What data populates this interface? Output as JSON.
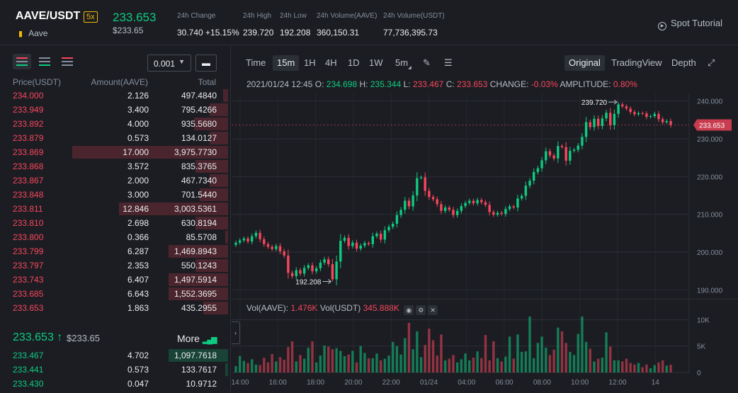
{
  "header": {
    "pair": "AAVE/USDT",
    "leverage": "5x",
    "coin_name": "Aave",
    "last_price": "233.653",
    "last_price_usd": "$233.65",
    "stats": [
      {
        "label": "24h Change",
        "value": "30.740 +15.15%",
        "color": "#0ecb81"
      },
      {
        "label": "24h High",
        "value": "239.720"
      },
      {
        "label": "24h Low",
        "value": "192.208"
      },
      {
        "label": "24h Volume(AAVE)",
        "value": "360,150.31"
      },
      {
        "label": "24h Volume(USDT)",
        "value": "77,736,395.73"
      }
    ],
    "tutorial": "Spot Tutorial"
  },
  "orderbook": {
    "precision": "0.001",
    "headers": {
      "price": "Price(USDT)",
      "amount": "Amount(AAVE)",
      "total": "Total"
    },
    "asks": [
      {
        "price": "234.000",
        "amount": "2.126",
        "total": "497.4840",
        "depth": 0.03
      },
      {
        "price": "233.949",
        "amount": "3.400",
        "total": "795.4266",
        "depth": 0.12
      },
      {
        "price": "233.892",
        "amount": "4.000",
        "total": "935.5680",
        "depth": 0.22
      },
      {
        "price": "233.879",
        "amount": "0.573",
        "total": "134.0127",
        "depth": 0.12
      },
      {
        "price": "233.869",
        "amount": "17.000",
        "total": "3,975.7730",
        "depth": 1.0
      },
      {
        "price": "233.868",
        "amount": "3.572",
        "total": "835.3765",
        "depth": 0.21
      },
      {
        "price": "233.867",
        "amount": "2.000",
        "total": "467.7340",
        "depth": 0.12
      },
      {
        "price": "233.848",
        "amount": "3.000",
        "total": "701.5440",
        "depth": 0.18
      },
      {
        "price": "233.811",
        "amount": "12.846",
        "total": "3,003.5361",
        "depth": 0.7
      },
      {
        "price": "233.810",
        "amount": "2.698",
        "total": "630.8194",
        "depth": 0.21
      },
      {
        "price": "233.800",
        "amount": "0.366",
        "total": "85.5708",
        "depth": 0.02
      },
      {
        "price": "233.799",
        "amount": "6.287",
        "total": "1,469.8943",
        "depth": 0.38
      },
      {
        "price": "233.797",
        "amount": "2.353",
        "total": "550.1243",
        "depth": 0.21
      },
      {
        "price": "233.743",
        "amount": "6.407",
        "total": "1,497.5914",
        "depth": 0.38
      },
      {
        "price": "233.685",
        "amount": "6.643",
        "total": "1,552.3695",
        "depth": 0.38
      },
      {
        "price": "233.653",
        "amount": "1.863",
        "total": "435.2955",
        "depth": 0.16
      }
    ],
    "mid_price": "233.653",
    "mid_arrow": "↑",
    "mid_usd": "$233.65",
    "more_label": "More",
    "bids": [
      {
        "price": "233.467",
        "amount": "4.702",
        "total": "1,097.7618",
        "depth": 0.38
      },
      {
        "price": "233.441",
        "amount": "0.573",
        "total": "133.7617",
        "depth": 0.02
      },
      {
        "price": "233.430",
        "amount": "0.047",
        "total": "10.9712",
        "depth": 0.0
      }
    ]
  },
  "chart_toolbar": {
    "intervals": [
      "Time",
      "15m",
      "1H",
      "4H",
      "1D",
      "1W",
      "5m"
    ],
    "active_interval": "15m",
    "views": [
      "Original",
      "TradingView",
      "Depth"
    ],
    "active_view": "Original"
  },
  "ohlc_info": {
    "date": "2021/01/24 12:45",
    "open_label": "O:",
    "open": "234.698",
    "high_label": "H:",
    "high": "235.344",
    "low_label": "L:",
    "low": "233.467",
    "close_label": "C:",
    "close": "233.653",
    "change_label": "CHANGE:",
    "change": "-0.03%",
    "amplitude_label": "AMPLITUDE:",
    "amplitude": "0.80%"
  },
  "volume_info": {
    "vol_base_label": "Vol(AAVE):",
    "vol_base": "1.476K",
    "vol_quote_label": "Vol(USDT)",
    "vol_quote": "345.888K"
  },
  "colors": {
    "up": "#0ecb81",
    "down": "#f6465d",
    "background": "#1b1d22",
    "grid": "#2b2f36"
  },
  "chart_data": {
    "type": "candlestick",
    "price_axis": {
      "ticks": [
        "240.000",
        "230.000",
        "220.000",
        "210.000",
        "200.000",
        "190.000"
      ],
      "ylim": [
        188,
        242
      ]
    },
    "volume_axis": {
      "ticks": [
        "10K",
        "5K",
        "0"
      ],
      "ylim": [
        0,
        11000
      ]
    },
    "x_ticks": [
      "14:00",
      "16:00",
      "18:00",
      "20:00",
      "22:00",
      "01/24",
      "04:00",
      "06:00",
      "08:00",
      "10:00",
      "12:00",
      "14"
    ],
    "current_price_label": "233.653",
    "high_marker": {
      "label": "239.720"
    },
    "low_marker": {
      "label": "192.208"
    },
    "close": [
      202.5,
      203.1,
      203.6,
      202.8,
      204.2,
      205.1,
      203.4,
      202.1,
      201.4,
      200.8,
      201.6,
      200.2,
      199.1,
      194.5,
      193.6,
      195.2,
      194.3,
      195.8,
      196.5,
      194.9,
      195.7,
      197.2,
      198.1,
      196.8,
      192.8,
      197.5,
      203.0,
      203.8,
      201.6,
      202.5,
      200.9,
      201.7,
      202.4,
      202.1,
      204.2,
      204.9,
      203.3,
      205.8,
      206.7,
      207.5,
      209.8,
      211.2,
      213.6,
      212.1,
      215.0,
      219.6,
      219.8,
      216.2,
      214.6,
      214.0,
      212.7,
      210.9,
      211.8,
      211.2,
      209.8,
      210.9,
      212.2,
      213.0,
      213.6,
      212.9,
      213.8,
      213.2,
      212.5,
      210.6,
      209.9,
      210.4,
      210.1,
      211.4,
      212.1,
      211.8,
      214.2,
      214.9,
      217.6,
      218.9,
      221.2,
      222.2,
      224.3,
      226.7,
      225.6,
      224.8,
      228.1,
      227.8,
      224.2,
      226.8,
      227.1,
      228.2,
      230.5,
      234.4,
      233.1,
      235.3,
      233.4,
      235.4,
      236.9,
      233.6,
      236.6,
      239.1,
      238.6,
      238.0,
      237.1,
      236.5,
      236.8,
      236.7,
      235.8,
      236.0,
      236.6,
      235.2,
      234.4,
      234.7,
      233.65
    ],
    "volume": [
      1200,
      3100,
      2200,
      1800,
      2500,
      1500,
      1400,
      2800,
      1900,
      3500,
      2100,
      2900,
      2400,
      4800,
      5900,
      2100,
      3300,
      2600,
      4700,
      5900,
      1900,
      3200,
      5100,
      4900,
      4400,
      4600,
      4100,
      3100,
      3400,
      4100,
      1900,
      5000,
      3700,
      2700,
      2700,
      3600,
      2300,
      2600,
      3200,
      5800,
      5000,
      3400,
      6500,
      9400,
      4400,
      7800,
      2900,
      5200,
      8300,
      6100,
      3200,
      7200,
      2300,
      2600,
      3300,
      1900,
      2500,
      3600,
      2300,
      2800,
      4000,
      2700,
      7100,
      2300,
      5900,
      2700,
      2100,
      3000,
      6800,
      2600,
      7200,
      3900,
      4000,
      10600,
      2700,
      5600,
      6800,
      4700,
      3300,
      4300,
      8500,
      7800,
      5600,
      3900,
      3300,
      7300,
      10600,
      5800,
      4500,
      2100,
      2600,
      2800,
      7600,
      4900,
      2300,
      2300,
      2100,
      2600,
      1800,
      1500,
      1800,
      1000,
      1500,
      800,
      1400,
      1900,
      2300,
      1300,
      1476
    ]
  }
}
